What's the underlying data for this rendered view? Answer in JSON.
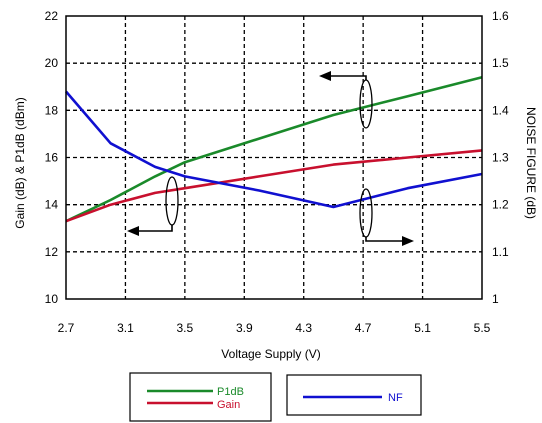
{
  "chart_data": {
    "type": "line",
    "xlabel": "Voltage Supply (V)",
    "ylabel_left": "Gain (dB) & P1dB (dBm)",
    "ylabel_right": "NOISE FIGURE (dB)",
    "xlim": [
      2.7,
      5.5
    ],
    "ylim_left": [
      10,
      22
    ],
    "ylim_right": [
      1.0,
      1.6
    ],
    "x_ticks": [
      "2.7",
      "3.1",
      "3.5",
      "3.9",
      "4.3",
      "4.7",
      "5.1",
      "5.5"
    ],
    "y_left_ticks": [
      "10",
      "12",
      "14",
      "16",
      "18",
      "20",
      "22"
    ],
    "y_right_ticks": [
      "1",
      "1.1",
      "1.2",
      "1.3",
      "1.4",
      "1.5",
      "1.6"
    ],
    "grid": true,
    "series": [
      {
        "name": "P1dB",
        "axis": "left",
        "color": "#1a8a2a",
        "x": [
          2.7,
          3.0,
          3.3,
          3.5,
          4.0,
          4.5,
          5.0,
          5.5
        ],
        "y": [
          13.3,
          14.2,
          15.2,
          15.8,
          16.8,
          17.8,
          18.6,
          19.4
        ]
      },
      {
        "name": "Gain",
        "axis": "left",
        "color": "#c8102e",
        "x": [
          2.7,
          3.0,
          3.3,
          3.5,
          4.0,
          4.5,
          5.0,
          5.5
        ],
        "y": [
          13.3,
          14.0,
          14.5,
          14.7,
          15.2,
          15.7,
          16.0,
          16.3
        ]
      },
      {
        "name": "NF",
        "axis": "right",
        "color": "#1010d0",
        "x": [
          2.7,
          3.0,
          3.3,
          3.5,
          4.0,
          4.5,
          5.0,
          5.5
        ],
        "y": [
          1.44,
          1.33,
          1.28,
          1.26,
          1.23,
          1.195,
          1.235,
          1.265
        ]
      }
    ],
    "legend": {
      "box1": [
        "P1dB",
        "Gain"
      ],
      "box2": [
        "NF"
      ],
      "placement": "bottom"
    }
  }
}
